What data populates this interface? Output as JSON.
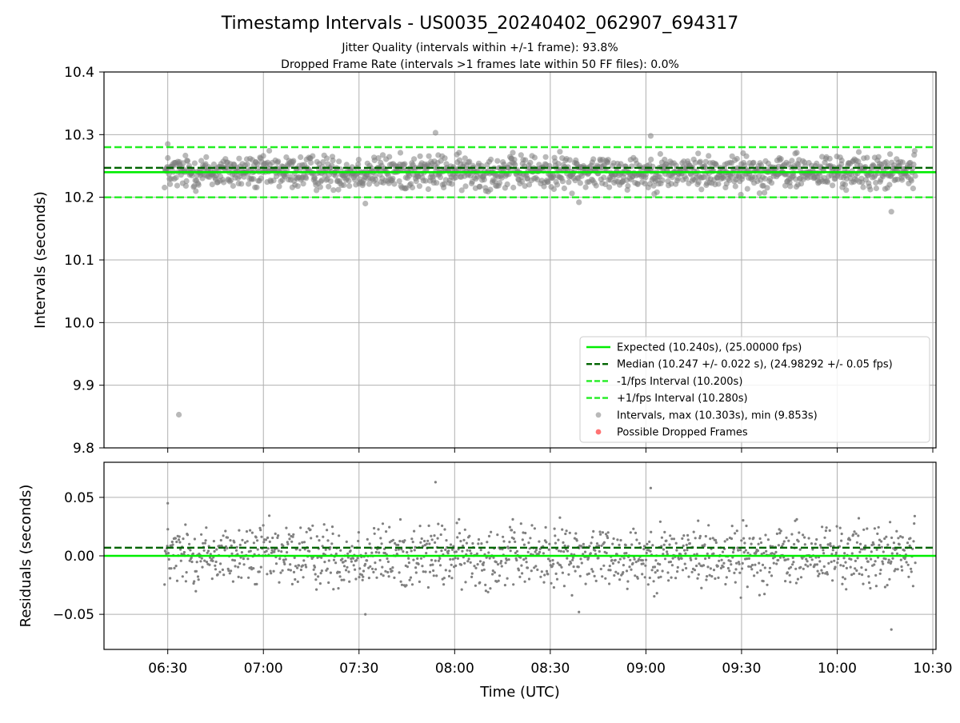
{
  "colors": {
    "expected": "#00ee00",
    "median": "#006400",
    "fps_bounds": "#22ee22",
    "points": "#808080",
    "dropped": "#ff0000",
    "grid": "#b0b0b0"
  },
  "chart_data": [
    {
      "type": "scatter",
      "title": "Timestamp Intervals - US0035_20240402_062907_694317",
      "subtitle_lines": [
        "Jitter Quality (intervals within +/-1 frame): 93.8%",
        "Dropped Frame Rate (intervals >1 frames late within 50 FF files): 0.0%"
      ],
      "ylabel": "Intervals (seconds)",
      "ylim": [
        9.8,
        10.4
      ],
      "yticks": [
        9.8,
        9.9,
        10.0,
        10.1,
        10.2,
        10.3,
        10.4
      ],
      "ytick_labels": [
        "9.8",
        "9.9",
        "10.0",
        "10.1",
        "10.2",
        "10.3",
        "10.4"
      ],
      "xlim_minutes": [
        370,
        631
      ],
      "grid": true,
      "legend_position": "lower-right",
      "reference_lines": {
        "expected": 10.24,
        "median": 10.247,
        "minus_one_fps": 10.2,
        "plus_one_fps": 10.28
      },
      "series": [
        {
          "name": "Expected (10.240s), (25.00000 fps)",
          "style": "solid-line"
        },
        {
          "name": "Median (10.247 +/- 0.022 s), (24.98292 +/- 0.05 fps)",
          "style": "dashed-line"
        },
        {
          "name": "-1/fps Interval (10.200s)",
          "style": "dashed-line"
        },
        {
          "name": "+1/fps Interval (10.280s)",
          "style": "dashed-line"
        },
        {
          "name": "Intervals, max (10.303s), min (9.853s)",
          "style": "gray-marker"
        },
        {
          "name": "Possible Dropped Frames",
          "style": "red-marker"
        }
      ],
      "start_minute": 389.0,
      "end_minute": 624.5,
      "point_count": 1370,
      "generated_value_range": [
        10.2,
        10.28
      ],
      "outliers": [
        {
          "x": 393.5,
          "y": 9.853
        },
        {
          "x": 617.0,
          "y": 10.177
        },
        {
          "x": 474.0,
          "y": 10.303
        },
        {
          "x": 390.0,
          "y": 10.285
        },
        {
          "x": 452.0,
          "y": 10.19
        },
        {
          "x": 519.0,
          "y": 10.192
        },
        {
          "x": 541.5,
          "y": 10.298
        }
      ]
    },
    {
      "type": "scatter",
      "xlabel": "Time (UTC)",
      "ylabel": "Residuals (seconds)",
      "ylim": [
        -0.08,
        0.08
      ],
      "yticks": [
        -0.05,
        0.0,
        0.05
      ],
      "ytick_labels": [
        "−0.05",
        "0.00",
        "0.05"
      ],
      "xticks_minutes": [
        390,
        420,
        450,
        480,
        510,
        540,
        570,
        600,
        630
      ],
      "xtick_labels": [
        "06:30",
        "07:00",
        "07:30",
        "08:00",
        "08:30",
        "09:00",
        "09:30",
        "10:00",
        "10:30"
      ],
      "reference_lines": {
        "zero": 0.0,
        "median_offset": 0.007
      },
      "grid": true,
      "residual_of": "intervals - 10.240"
    }
  ]
}
